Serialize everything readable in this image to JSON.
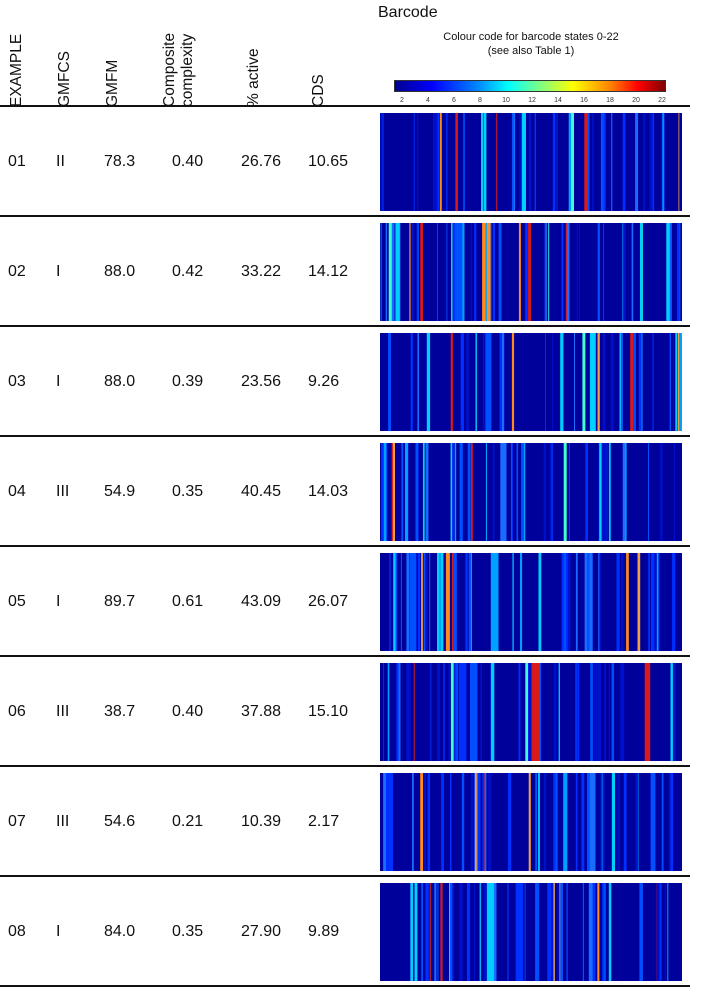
{
  "headers": {
    "example": "EXAMPLE",
    "gmfcs": "GMFCS",
    "gmfm": "GMFM",
    "composite_line1": "Composite",
    "composite_line2": "complexity",
    "active": "% active",
    "cds": "CDS",
    "barcode": "Barcode"
  },
  "legend": {
    "caption_line1": "Colour code for barcode states 0-22",
    "caption_line2": "(see also Table 1)",
    "ticks": [
      "2",
      "4",
      "6",
      "8",
      "10",
      "12",
      "14",
      "16",
      "18",
      "20",
      "22"
    ],
    "colors": {
      "low": "#00008f",
      "mid": "#00ffff",
      "high": "#800000"
    }
  },
  "rows": [
    {
      "example": "01",
      "gmfcs": "II",
      "gmfm": "78.3",
      "composite": "0.40",
      "active": "26.76",
      "cds": "10.65"
    },
    {
      "example": "02",
      "gmfcs": "I",
      "gmfm": "88.0",
      "composite": "0.42",
      "active": "33.22",
      "cds": "14.12"
    },
    {
      "example": "03",
      "gmfcs": "I",
      "gmfm": "88.0",
      "composite": "0.39",
      "active": "23.56",
      "cds": "9.26"
    },
    {
      "example": "04",
      "gmfcs": "III",
      "gmfm": "54.9",
      "composite": "0.35",
      "active": "40.45",
      "cds": "14.03"
    },
    {
      "example": "05",
      "gmfcs": "I",
      "gmfm": "89.7",
      "composite": "0.61",
      "active": "43.09",
      "cds": "26.07"
    },
    {
      "example": "06",
      "gmfcs": "III",
      "gmfm": "38.7",
      "composite": "0.40",
      "active": "37.88",
      "cds": "15.10"
    },
    {
      "example": "07",
      "gmfcs": "III",
      "gmfm": "54.6",
      "composite": "0.21",
      "active": "10.39",
      "cds": "2.17"
    },
    {
      "example": "08",
      "gmfcs": "I",
      "gmfm": "84.0",
      "composite": "0.35",
      "active": "27.90",
      "cds": "9.89"
    }
  ]
}
